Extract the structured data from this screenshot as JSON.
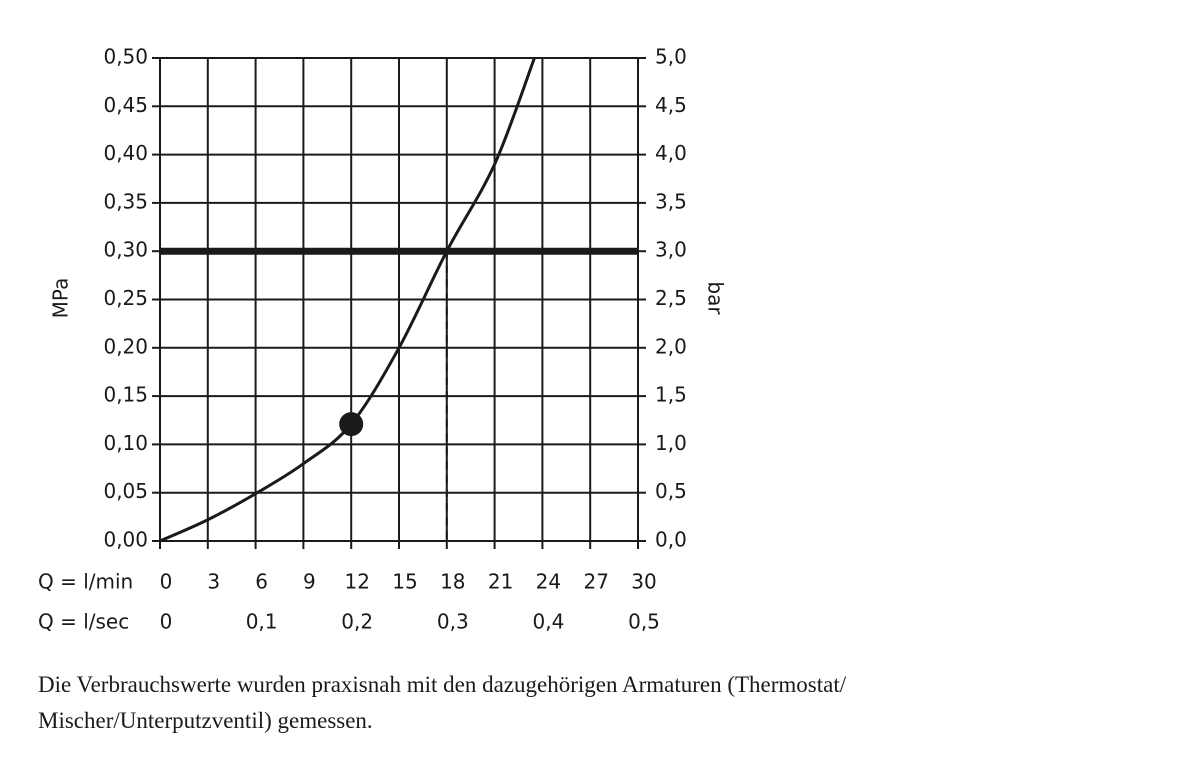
{
  "chart_data": {
    "type": "line",
    "x": [
      0,
      3,
      6,
      9,
      12,
      15,
      18,
      21,
      23.5
    ],
    "values": [
      0,
      0.022,
      0.049,
      0.08,
      0.121,
      0.2,
      0.3,
      0.39,
      0.5
    ],
    "color": "#1a1a1a",
    "xlabel": "Q = l/min",
    "x2label": "Q = l/sec",
    "ylabel": "MPa",
    "y2label": "bar",
    "xlim": [
      0,
      30
    ],
    "xticks": [
      0,
      3,
      6,
      9,
      12,
      15,
      18,
      21,
      24,
      27,
      30
    ],
    "x2lim": [
      0,
      0.5
    ],
    "x2ticks": [
      0,
      {
        "value": 0.1,
        "label": "0,1"
      },
      {
        "value": 0.2,
        "label": "0,2"
      },
      {
        "value": 0.3,
        "label": "0,3"
      },
      {
        "value": 0.4,
        "label": "0,4"
      },
      {
        "value": 0.5,
        "label": "0,5"
      }
    ],
    "ylim": [
      0,
      0.5
    ],
    "yticks": [
      {
        "value": 0,
        "label": "0,00"
      },
      {
        "value": 0.05,
        "label": "0,05"
      },
      {
        "value": 0.1,
        "label": "0,10"
      },
      {
        "value": 0.15,
        "label": "0,15"
      },
      {
        "value": 0.2,
        "label": "0,20"
      },
      {
        "value": 0.25,
        "label": "0,25"
      },
      {
        "value": 0.3,
        "label": "0,30"
      },
      {
        "value": 0.35,
        "label": "0,35"
      },
      {
        "value": 0.4,
        "label": "0,40"
      },
      {
        "value": 0.45,
        "label": "0,45"
      },
      {
        "value": 0.5,
        "label": "0,50"
      }
    ],
    "y2lim": [
      0,
      5
    ],
    "y2ticks": [
      {
        "value": 0,
        "label": "0,0"
      },
      {
        "value": 0.5,
        "label": "0,5"
      },
      {
        "value": 1,
        "label": "1,0"
      },
      {
        "value": 1.5,
        "label": "1,5"
      },
      {
        "value": 2,
        "label": "2,0"
      },
      {
        "value": 2.5,
        "label": "2,5"
      },
      {
        "value": 3,
        "label": "3,0"
      },
      {
        "value": 3.5,
        "label": "3,5"
      },
      {
        "value": 4,
        "label": "4,0"
      },
      {
        "value": 4.5,
        "label": "4,5"
      },
      {
        "value": 5,
        "label": "5,0"
      }
    ],
    "grid": true,
    "reference_y": 0.3,
    "drop_line_x": 18,
    "highlight": {
      "x": 12,
      "y": 0.121
    }
  },
  "caption": [
    "Die Verbrauchswerte wurden praxisnah mit den dazugehörigen Armaturen (Thermostat/",
    "Mischer/Unterputzventil) gemessen."
  ]
}
